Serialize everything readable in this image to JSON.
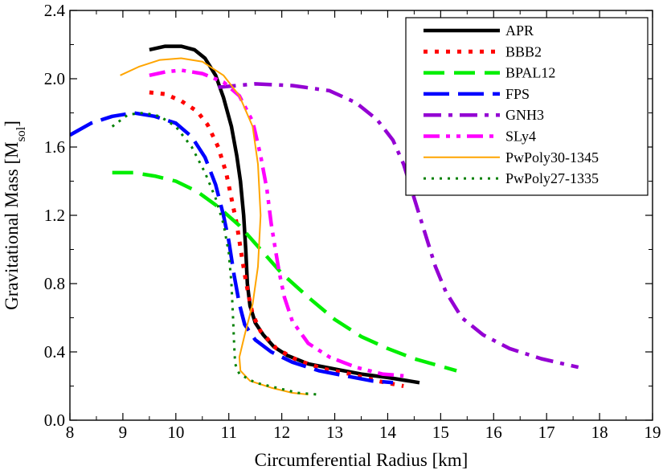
{
  "chart_data": {
    "type": "line",
    "title": "",
    "xlabel": "Circumferential Radius [km]",
    "ylabel_main": "Gravitational Mass [M",
    "ylabel_sub": "sol",
    "ylabel_end": "]",
    "xlim": [
      8,
      19
    ],
    "ylim": [
      0.0,
      2.4
    ],
    "xticks": [
      "8",
      "9",
      "10",
      "11",
      "12",
      "13",
      "14",
      "15",
      "16",
      "17",
      "18",
      "19"
    ],
    "yticks": [
      "0.0",
      "0.4",
      "0.8",
      "1.2",
      "1.6",
      "2.0",
      "2.4"
    ],
    "grid": false,
    "legend_position": "top-right",
    "series": [
      {
        "name": "APR",
        "color": "#000000",
        "style": "solid-thick",
        "points": [
          [
            9.5,
            2.17
          ],
          [
            9.8,
            2.19
          ],
          [
            10.1,
            2.19
          ],
          [
            10.35,
            2.17
          ],
          [
            10.55,
            2.12
          ],
          [
            10.75,
            2.02
          ],
          [
            10.9,
            1.89
          ],
          [
            11.05,
            1.72
          ],
          [
            11.15,
            1.55
          ],
          [
            11.22,
            1.4
          ],
          [
            11.28,
            1.2
          ],
          [
            11.32,
            1.0
          ],
          [
            11.35,
            0.8
          ],
          [
            11.4,
            0.67
          ],
          [
            11.5,
            0.57
          ],
          [
            11.65,
            0.5
          ],
          [
            11.85,
            0.43
          ],
          [
            12.1,
            0.38
          ],
          [
            12.5,
            0.33
          ],
          [
            13.0,
            0.3
          ],
          [
            13.5,
            0.27
          ],
          [
            14.0,
            0.25
          ],
          [
            14.6,
            0.22
          ]
        ]
      },
      {
        "name": "BBB2",
        "color": "#ff0000",
        "style": "dotted-thick",
        "points": [
          [
            9.5,
            1.92
          ],
          [
            9.8,
            1.91
          ],
          [
            10.1,
            1.87
          ],
          [
            10.4,
            1.81
          ],
          [
            10.6,
            1.73
          ],
          [
            10.8,
            1.6
          ],
          [
            10.95,
            1.45
          ],
          [
            11.05,
            1.3
          ],
          [
            11.15,
            1.15
          ],
          [
            11.25,
            0.95
          ],
          [
            11.32,
            0.82
          ],
          [
            11.38,
            0.72
          ],
          [
            11.45,
            0.62
          ],
          [
            11.6,
            0.52
          ],
          [
            11.9,
            0.42
          ],
          [
            12.3,
            0.35
          ],
          [
            12.8,
            0.3
          ],
          [
            13.3,
            0.27
          ],
          [
            13.8,
            0.23
          ],
          [
            14.3,
            0.2
          ]
        ]
      },
      {
        "name": "BPAL12",
        "color": "#00ee00",
        "style": "dashed-thick",
        "points": [
          [
            8.8,
            1.45
          ],
          [
            9.2,
            1.45
          ],
          [
            9.6,
            1.43
          ],
          [
            10.0,
            1.4
          ],
          [
            10.4,
            1.34
          ],
          [
            10.8,
            1.25
          ],
          [
            11.2,
            1.14
          ],
          [
            11.6,
            1.0
          ],
          [
            12.0,
            0.86
          ],
          [
            12.5,
            0.72
          ],
          [
            13.0,
            0.59
          ],
          [
            13.5,
            0.49
          ],
          [
            14.0,
            0.42
          ],
          [
            14.5,
            0.36
          ],
          [
            15.3,
            0.29
          ]
        ]
      },
      {
        "name": "FPS",
        "color": "#0000ff",
        "style": "longdash-thick",
        "points": [
          [
            8.0,
            1.67
          ],
          [
            8.4,
            1.74
          ],
          [
            8.8,
            1.78
          ],
          [
            9.2,
            1.8
          ],
          [
            9.6,
            1.78
          ],
          [
            10.0,
            1.74
          ],
          [
            10.3,
            1.66
          ],
          [
            10.55,
            1.54
          ],
          [
            10.75,
            1.38
          ],
          [
            10.9,
            1.2
          ],
          [
            11.0,
            1.05
          ],
          [
            11.1,
            0.85
          ],
          [
            11.2,
            0.68
          ],
          [
            11.3,
            0.56
          ],
          [
            11.5,
            0.47
          ],
          [
            11.8,
            0.4
          ],
          [
            12.2,
            0.34
          ],
          [
            12.7,
            0.29
          ],
          [
            13.2,
            0.26
          ],
          [
            13.7,
            0.23
          ],
          [
            14.1,
            0.22
          ]
        ]
      },
      {
        "name": "GNH3",
        "color": "#9400d3",
        "style": "dashdot-thick",
        "points": [
          [
            10.8,
            1.95
          ],
          [
            11.5,
            1.97
          ],
          [
            12.2,
            1.96
          ],
          [
            12.9,
            1.93
          ],
          [
            13.4,
            1.86
          ],
          [
            13.8,
            1.76
          ],
          [
            14.1,
            1.64
          ],
          [
            14.3,
            1.5
          ],
          [
            14.5,
            1.3
          ],
          [
            14.7,
            1.1
          ],
          [
            14.9,
            0.9
          ],
          [
            15.1,
            0.75
          ],
          [
            15.4,
            0.6
          ],
          [
            15.8,
            0.5
          ],
          [
            16.3,
            0.42
          ],
          [
            16.9,
            0.36
          ],
          [
            17.6,
            0.31
          ]
        ]
      },
      {
        "name": "SLy4",
        "color": "#ff00ff",
        "style": "dashdotdot-thick",
        "points": [
          [
            9.5,
            2.02
          ],
          [
            9.8,
            2.04
          ],
          [
            10.1,
            2.05
          ],
          [
            10.5,
            2.03
          ],
          [
            10.9,
            1.98
          ],
          [
            11.2,
            1.9
          ],
          [
            11.45,
            1.75
          ],
          [
            11.6,
            1.55
          ],
          [
            11.72,
            1.35
          ],
          [
            11.8,
            1.15
          ],
          [
            11.88,
            1.0
          ],
          [
            11.95,
            0.87
          ],
          [
            12.05,
            0.72
          ],
          [
            12.2,
            0.58
          ],
          [
            12.5,
            0.45
          ],
          [
            12.9,
            0.37
          ],
          [
            13.4,
            0.31
          ],
          [
            13.9,
            0.27
          ],
          [
            14.3,
            0.26
          ]
        ]
      },
      {
        "name": "PwPoly30-1345",
        "color": "#ffa500",
        "style": "solid-thin",
        "points": [
          [
            8.95,
            2.02
          ],
          [
            9.3,
            2.07
          ],
          [
            9.7,
            2.11
          ],
          [
            10.1,
            2.12
          ],
          [
            10.5,
            2.1
          ],
          [
            10.9,
            2.02
          ],
          [
            11.2,
            1.9
          ],
          [
            11.45,
            1.72
          ],
          [
            11.55,
            1.5
          ],
          [
            11.6,
            1.2
          ],
          [
            11.55,
            0.9
          ],
          [
            11.45,
            0.68
          ],
          [
            11.3,
            0.5
          ],
          [
            11.2,
            0.37
          ],
          [
            11.22,
            0.29
          ],
          [
            11.4,
            0.23
          ],
          [
            11.8,
            0.19
          ],
          [
            12.2,
            0.16
          ],
          [
            12.5,
            0.15
          ]
        ]
      },
      {
        "name": "PwPoly27-1335",
        "color": "#008000",
        "style": "dotted-thin",
        "points": [
          [
            8.8,
            1.72
          ],
          [
            9.1,
            1.79
          ],
          [
            9.4,
            1.8
          ],
          [
            9.7,
            1.78
          ],
          [
            10.0,
            1.72
          ],
          [
            10.3,
            1.6
          ],
          [
            10.55,
            1.45
          ],
          [
            10.75,
            1.3
          ],
          [
            10.9,
            1.15
          ],
          [
            11.0,
            0.98
          ],
          [
            11.05,
            0.8
          ],
          [
            11.08,
            0.6
          ],
          [
            11.1,
            0.45
          ],
          [
            11.12,
            0.33
          ],
          [
            11.2,
            0.27
          ],
          [
            11.5,
            0.22
          ],
          [
            11.9,
            0.19
          ],
          [
            12.3,
            0.16
          ],
          [
            12.7,
            0.15
          ]
        ]
      }
    ]
  }
}
